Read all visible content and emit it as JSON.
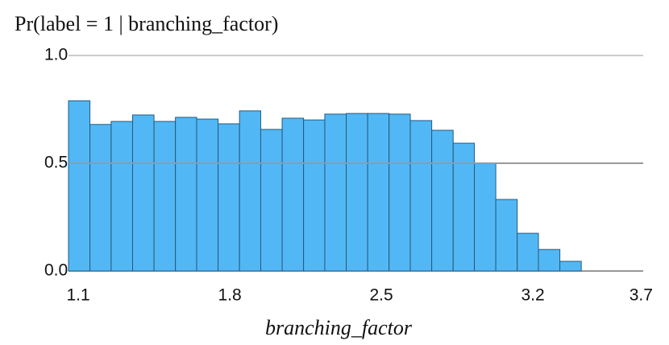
{
  "chart_data": {
    "type": "histogram",
    "title": "Pr(label = 1 | branching_factor)",
    "x_label": "branching_factor",
    "bins": [
      1.055,
      1.154,
      1.252,
      1.351,
      1.45,
      1.549,
      1.647,
      1.746,
      1.845,
      1.943,
      2.042,
      2.141,
      2.239,
      2.338,
      2.437,
      2.536,
      2.634,
      2.733,
      2.832,
      2.93,
      3.029,
      3.128,
      3.226,
      3.325,
      3.424
    ],
    "values": [
      0.79,
      0.68,
      0.694,
      0.724,
      0.694,
      0.713,
      0.705,
      0.683,
      0.743,
      0.657,
      0.709,
      0.701,
      0.728,
      0.731,
      0.731,
      0.728,
      0.698,
      0.653,
      0.593,
      0.5,
      0.332,
      0.175,
      0.1,
      0.045
    ],
    "color": "#52b8f5",
    "xlim": [
      1.055,
      3.71
    ],
    "xticks": [
      1.1,
      1.8,
      2.5,
      3.2,
      3.7
    ],
    "ylim": [
      0,
      1
    ],
    "yticks": [
      {
        "value": 0,
        "label": "0.0"
      },
      {
        "value": 0.5,
        "label": "0.5"
      },
      {
        "value": 1,
        "label": "1.0"
      }
    ],
    "grid": true
  }
}
